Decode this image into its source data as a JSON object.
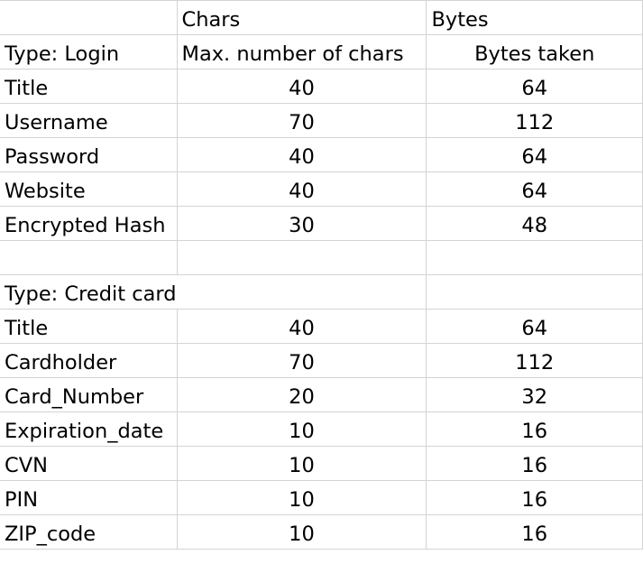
{
  "header_row": {
    "col_b": "Chars",
    "col_c": "Bytes"
  },
  "login_section": {
    "type_label": "Type: Login",
    "col_b_header": "Max. number of chars",
    "col_c_header": "Bytes taken",
    "rows": [
      {
        "field": "Title",
        "chars": "40",
        "bytes": "64"
      },
      {
        "field": "Username",
        "chars": "70",
        "bytes": "112"
      },
      {
        "field": "Password",
        "chars": "40",
        "bytes": "64"
      },
      {
        "field": "Website",
        "chars": "40",
        "bytes": "64"
      },
      {
        "field": "Encrypted Hash",
        "chars": "30",
        "bytes": "48"
      }
    ]
  },
  "credit_card_section": {
    "type_label": "Type: Credit card",
    "rows": [
      {
        "field": "Title",
        "chars": "40",
        "bytes": "64"
      },
      {
        "field": "Cardholder",
        "chars": "70",
        "bytes": "112"
      },
      {
        "field": "Card_Number",
        "chars": "20",
        "bytes": "32"
      },
      {
        "field": "Expiration_date",
        "chars": "10",
        "bytes": "16"
      },
      {
        "field": "CVN",
        "chars": "10",
        "bytes": "16"
      },
      {
        "field": "PIN",
        "chars": "10",
        "bytes": "16"
      },
      {
        "field": "ZIP_code",
        "chars": "10",
        "bytes": "16"
      }
    ]
  }
}
